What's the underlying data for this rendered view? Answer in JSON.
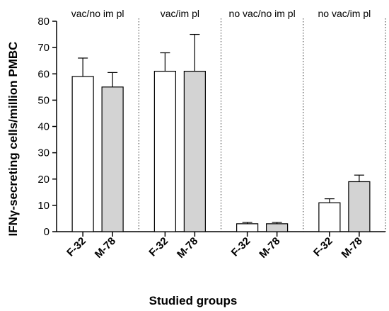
{
  "chart_data": {
    "type": "bar",
    "xlabel": "Studied groups",
    "ylabel": "IFNγ-secreting cells/million PMBC",
    "ylim": [
      0,
      80
    ],
    "yticks": [
      "0",
      "10",
      "20",
      "30",
      "40",
      "50",
      "60",
      "70",
      "80"
    ],
    "grid": false,
    "groups": [
      {
        "label": "vac/no im pl",
        "bars": [
          {
            "category": "F-32",
            "value": 59,
            "error": 7,
            "fill": "#ffffff"
          },
          {
            "category": "M-78",
            "value": 55,
            "error": 5.5,
            "fill": "#d3d3d3"
          }
        ]
      },
      {
        "label": "vac/im pl",
        "bars": [
          {
            "category": "F-32",
            "value": 61,
            "error": 7,
            "fill": "#ffffff"
          },
          {
            "category": "M-78",
            "value": 61,
            "error": 14,
            "fill": "#d3d3d3"
          }
        ]
      },
      {
        "label": "no vac/no im pl",
        "bars": [
          {
            "category": "F-32",
            "value": 3,
            "error": 0.5,
            "fill": "#ffffff"
          },
          {
            "category": "M-78",
            "value": 3,
            "error": 0.5,
            "fill": "#d3d3d3"
          }
        ]
      },
      {
        "label": "no vac/im pl",
        "bars": [
          {
            "category": "F-32",
            "value": 11,
            "error": 1.5,
            "fill": "#ffffff"
          },
          {
            "category": "M-78",
            "value": 19,
            "error": 2.5,
            "fill": "#d3d3d3"
          }
        ]
      }
    ]
  }
}
